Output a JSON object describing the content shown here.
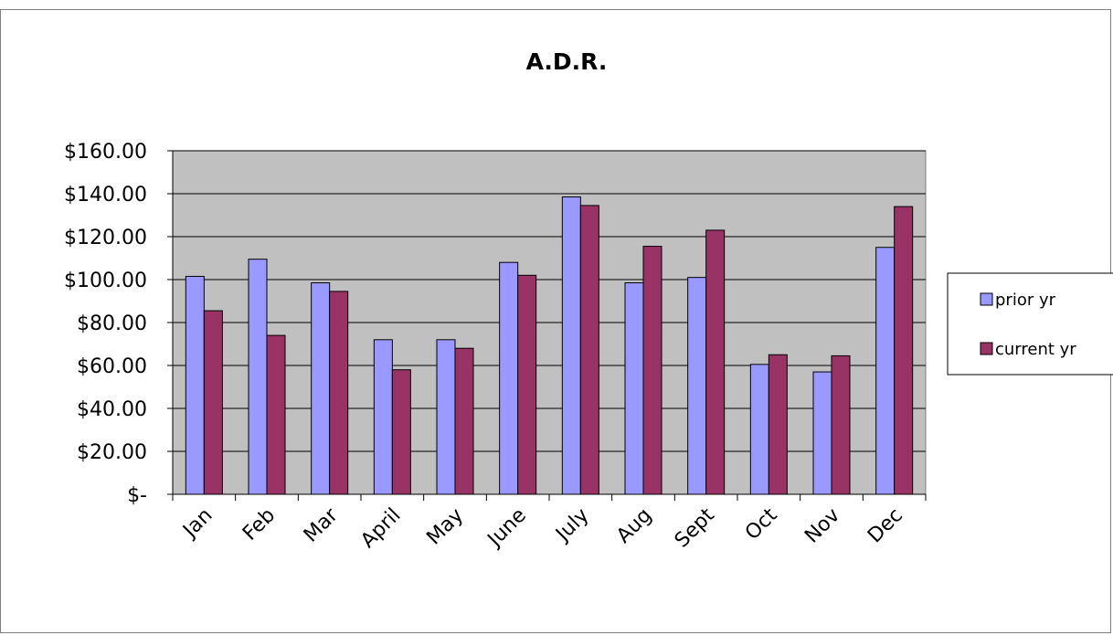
{
  "chart_data": {
    "type": "bar",
    "title": "A.D.R.",
    "xlabel": "",
    "ylabel": "",
    "categories": [
      "Jan",
      "Feb",
      "Mar",
      "April",
      "May",
      "June",
      "July",
      "Aug",
      "Sept",
      "Oct",
      "Nov",
      "Dec"
    ],
    "series": [
      {
        "name": "prior yr",
        "color": "#9999FF",
        "values": [
          101.5,
          109.5,
          98.5,
          72,
          72,
          108,
          138.5,
          98.5,
          101,
          60.5,
          57,
          115
        ]
      },
      {
        "name": "current yr",
        "color": "#993366",
        "values": [
          85.5,
          74,
          94.5,
          58,
          68,
          102,
          134.5,
          115.5,
          123,
          65,
          64.5,
          134
        ]
      }
    ],
    "ylim": [
      0,
      160
    ],
    "yticks": [
      0,
      20,
      40,
      60,
      80,
      100,
      120,
      140,
      160
    ],
    "ytick_labels": [
      "$-",
      "$20.00",
      "$40.00",
      "$60.00",
      "$80.00",
      "$100.00",
      "$120.00",
      "$140.00",
      "$160.00"
    ],
    "grid": true,
    "plot_background": "#C0C0C0",
    "legend_position": "right"
  }
}
